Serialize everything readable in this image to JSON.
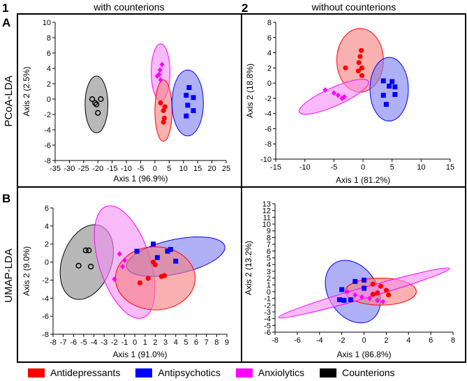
{
  "labels": {
    "col1_num": "1",
    "col2_num": "2",
    "col1_title": "with counterions",
    "col2_title": "without counterions",
    "rowA": "A",
    "rowB": "B",
    "rowA_label": "PCoA-LDA",
    "rowB_label": "UMAP-LDA"
  },
  "legend": [
    {
      "label": "Antidepressants",
      "color": "#ff0000"
    },
    {
      "label": "Antipsychotics",
      "color": "#0000ff"
    },
    {
      "label": "Anxiolytics",
      "color": "#ff00ff"
    },
    {
      "label": "Counterions",
      "color": "#000000"
    }
  ],
  "groups": {
    "Antidepressants": {
      "color": "#ff0000",
      "fill": "#f58080",
      "marker": "circle-filled"
    },
    "Antipsychotics": {
      "color": "#0000ff",
      "fill": "#8080f0",
      "marker": "square"
    },
    "Anxiolytics": {
      "color": "#ff00ff",
      "fill": "#f58ff5",
      "marker": "diamond"
    },
    "Counterions": {
      "color": "#000000",
      "fill": "#8c8c8c",
      "marker": "circle-open"
    }
  },
  "chart_data": [
    {
      "id": "A1",
      "type": "scatter",
      "title": "with counterions",
      "xlabel": "Axis 1 (96.9%)",
      "ylabel": "Axis 2 (2.5%)",
      "xlim": [
        -35,
        25
      ],
      "ylim": [
        -8,
        10
      ],
      "xticks": [
        -35,
        -30,
        -25,
        -20,
        -15,
        -10,
        -5,
        0,
        5,
        10,
        15,
        20,
        25
      ],
      "yticks": [
        -8,
        -6,
        -4,
        -2,
        0,
        2,
        4,
        6,
        8,
        10
      ],
      "ellipses": [
        {
          "group": "Counterions",
          "cx": -20.5,
          "cy": -0.7,
          "rx": 4.0,
          "ry": 3.7,
          "angle": 0
        },
        {
          "group": "Anxiolytics",
          "cx": 2.0,
          "cy": 3.5,
          "rx": 3.3,
          "ry": 3.7,
          "angle": 0
        },
        {
          "group": "Antidepressants",
          "cx": 3.0,
          "cy": -1.5,
          "rx": 3.0,
          "ry": 4.0,
          "angle": 0
        },
        {
          "group": "Antipsychotics",
          "cx": 11.5,
          "cy": -0.5,
          "rx": 5.5,
          "ry": 4.3,
          "angle": 0
        }
      ],
      "series": [
        {
          "name": "Counterions",
          "points": [
            [
              -22,
              0
            ],
            [
              -19,
              0
            ],
            [
              -20.5,
              -0.7
            ],
            [
              -21,
              -0.5
            ],
            [
              -20,
              -1.8
            ]
          ]
        },
        {
          "name": "Anxiolytics",
          "points": [
            [
              2.5,
              4.5
            ],
            [
              1.8,
              3.8
            ],
            [
              1.5,
              3.2
            ],
            [
              2.0,
              2.5
            ],
            [
              0.8,
              3.0
            ]
          ]
        },
        {
          "name": "Antidepressants",
          "points": [
            [
              2.0,
              -0.5
            ],
            [
              3.5,
              -1.0
            ],
            [
              3.0,
              -1.5
            ],
            [
              3.3,
              -2.5
            ],
            [
              3.0,
              -3.0
            ]
          ]
        },
        {
          "name": "Antipsychotics",
          "points": [
            [
              11.0,
              0.5
            ],
            [
              12.0,
              1.5
            ],
            [
              13.5,
              0.2
            ],
            [
              11.5,
              -0.8
            ],
            [
              13.5,
              -1.5
            ],
            [
              11.0,
              -2.2
            ]
          ]
        }
      ]
    },
    {
      "id": "A2",
      "type": "scatter",
      "title": "without counterions",
      "xlabel": "Axis 1 (81.2%)",
      "ylabel": "Axis 2 (18.8%)",
      "xlim": [
        -15,
        15
      ],
      "ylim": [
        -10,
        8
      ],
      "xticks": [
        -15,
        -10,
        -5,
        0,
        5,
        10,
        15
      ],
      "yticks": [
        -10,
        -8,
        -6,
        -4,
        -2,
        0,
        2,
        4,
        6,
        8
      ],
      "ellipses": [
        {
          "group": "Antidepressants",
          "cx": -0.5,
          "cy": 3.0,
          "rx": 4.0,
          "ry": 4.2,
          "angle": 0
        },
        {
          "group": "Antipsychotics",
          "cx": 4.5,
          "cy": -0.8,
          "rx": 3.3,
          "ry": 4.2,
          "angle": 0
        },
        {
          "group": "Anxiolytics",
          "cx": -5.0,
          "cy": -1.8,
          "rx": 6.5,
          "ry": 1.2,
          "angle": 24
        }
      ],
      "series": [
        {
          "name": "Antidepressants",
          "points": [
            [
              -0.3,
              4.3
            ],
            [
              -0.5,
              3.5
            ],
            [
              -0.7,
              2.7
            ],
            [
              -0.2,
              2.0
            ],
            [
              -0.8,
              1.6
            ],
            [
              -3.0,
              2.0
            ],
            [
              -0.2,
              1.0
            ]
          ]
        },
        {
          "name": "Antipsychotics",
          "points": [
            [
              3.5,
              0.3
            ],
            [
              5.0,
              0.2
            ],
            [
              4.5,
              -0.4
            ],
            [
              5.5,
              -0.5
            ],
            [
              3.5,
              -1.6
            ],
            [
              5.5,
              -1.5
            ],
            [
              4.0,
              -2.8
            ]
          ]
        },
        {
          "name": "Anxiolytics",
          "points": [
            [
              -6.5,
              -0.9
            ],
            [
              -5.0,
              -1.3
            ],
            [
              -4.3,
              -1.6
            ],
            [
              -3.6,
              -2.0
            ],
            [
              -3.2,
              -1.8
            ]
          ]
        }
      ]
    },
    {
      "id": "B1",
      "type": "scatter",
      "title": "with counterions",
      "xlabel": "Axis 1 (91.0%)",
      "ylabel": "Axis 2 (9.0%)",
      "xlim": [
        -8,
        9
      ],
      "ylim": [
        -8,
        6
      ],
      "xticks": [
        -8,
        -7,
        -6,
        -5,
        -4,
        -3,
        -2,
        -1,
        0,
        1,
        2,
        3,
        4,
        5,
        6,
        7,
        8,
        9
      ],
      "yticks": [
        -8,
        -6,
        -4,
        -2,
        0,
        2,
        4,
        6
      ],
      "ellipses": [
        {
          "group": "Counterions",
          "cx": -4.7,
          "cy": 0.0,
          "rx": 2.4,
          "ry": 4.3,
          "angle": -20
        },
        {
          "group": "Anxiolytics",
          "cx": -1.0,
          "cy": 0.0,
          "rx": 2.5,
          "ry": 6.5,
          "angle": 18
        },
        {
          "group": "Antipsychotics",
          "cx": 4.0,
          "cy": 0.6,
          "rx": 4.9,
          "ry": 1.9,
          "angle": 12
        },
        {
          "group": "Antidepressants",
          "cx": 2.0,
          "cy": -1.8,
          "rx": 3.9,
          "ry": 3.5,
          "angle": 0
        }
      ],
      "series": [
        {
          "name": "Counterions",
          "points": [
            [
              -4.8,
              1.3
            ],
            [
              -4.5,
              1.3
            ],
            [
              -5.5,
              -0.4
            ],
            [
              -4.3,
              -0.5
            ]
          ]
        },
        {
          "name": "Anxiolytics",
          "points": [
            [
              -1.5,
              0.9
            ],
            [
              -1.0,
              0.2
            ],
            [
              -1.2,
              -0.5
            ],
            [
              -2.0,
              -1.9
            ]
          ]
        },
        {
          "name": "Antipsychotics",
          "points": [
            [
              0.2,
              1.2
            ],
            [
              1.8,
              2.0
            ],
            [
              2.2,
              0.5
            ],
            [
              3.2,
              1.2
            ],
            [
              3.5,
              1.4
            ],
            [
              4.0,
              0.1
            ]
          ]
        },
        {
          "name": "Antidepressants",
          "points": [
            [
              1.8,
              0.0
            ],
            [
              2.0,
              -0.3
            ],
            [
              1.3,
              -1.8
            ],
            [
              0.5,
              -2.3
            ],
            [
              2.6,
              -1.6
            ],
            [
              2.9,
              -1.5
            ]
          ]
        }
      ]
    },
    {
      "id": "B2",
      "type": "scatter",
      "title": "without counterions",
      "xlabel": "Axis 1 (86.8%)",
      "ylabel": "Axis 2 (13.2%)",
      "xlim": [
        -8,
        8
      ],
      "ylim": [
        -6,
        13
      ],
      "xticks": [
        -8,
        -6,
        -4,
        -2,
        0,
        2,
        4,
        6,
        8
      ],
      "yticks": [
        -6,
        -5,
        -4,
        -3,
        -2,
        -1,
        0,
        1,
        2,
        3,
        4,
        5,
        6,
        7,
        8,
        9,
        10,
        11,
        12,
        13
      ],
      "ellipses": [
        {
          "group": "Antipsychotics",
          "cx": -1.0,
          "cy": 0.0,
          "rx": 2.2,
          "ry": 5.0,
          "angle": 33
        },
        {
          "group": "Antidepressants",
          "cx": 1.5,
          "cy": 0.0,
          "rx": 3.2,
          "ry": 2.0,
          "angle": 0
        },
        {
          "group": "Anxiolytics",
          "cx": 0.0,
          "cy": -0.2,
          "rx": 8.0,
          "ry": 0.8,
          "angle": 16
        }
      ],
      "series": [
        {
          "name": "Antipsychotics",
          "points": [
            [
              0.0,
              1.7
            ],
            [
              -0.8,
              1.5
            ],
            [
              -2.0,
              0.3
            ],
            [
              0.0,
              0.5
            ],
            [
              -2.2,
              -1.2
            ],
            [
              -1.8,
              -1.3
            ],
            [
              -1.2,
              -1.2
            ]
          ]
        },
        {
          "name": "Antidepressants",
          "points": [
            [
              0.8,
              1.1
            ],
            [
              1.5,
              0.8
            ],
            [
              2.0,
              0.2
            ],
            [
              1.2,
              -0.2
            ],
            [
              0.8,
              -0.4
            ],
            [
              2.2,
              -0.5
            ]
          ]
        },
        {
          "name": "Anxiolytics",
          "points": [
            [
              -1.5,
              0.0
            ],
            [
              -0.8,
              -0.5
            ],
            [
              -0.2,
              -0.8
            ],
            [
              0.5,
              -1.0
            ],
            [
              1.2,
              -1.3
            ],
            [
              1.7,
              -1.5
            ]
          ]
        }
      ]
    }
  ]
}
